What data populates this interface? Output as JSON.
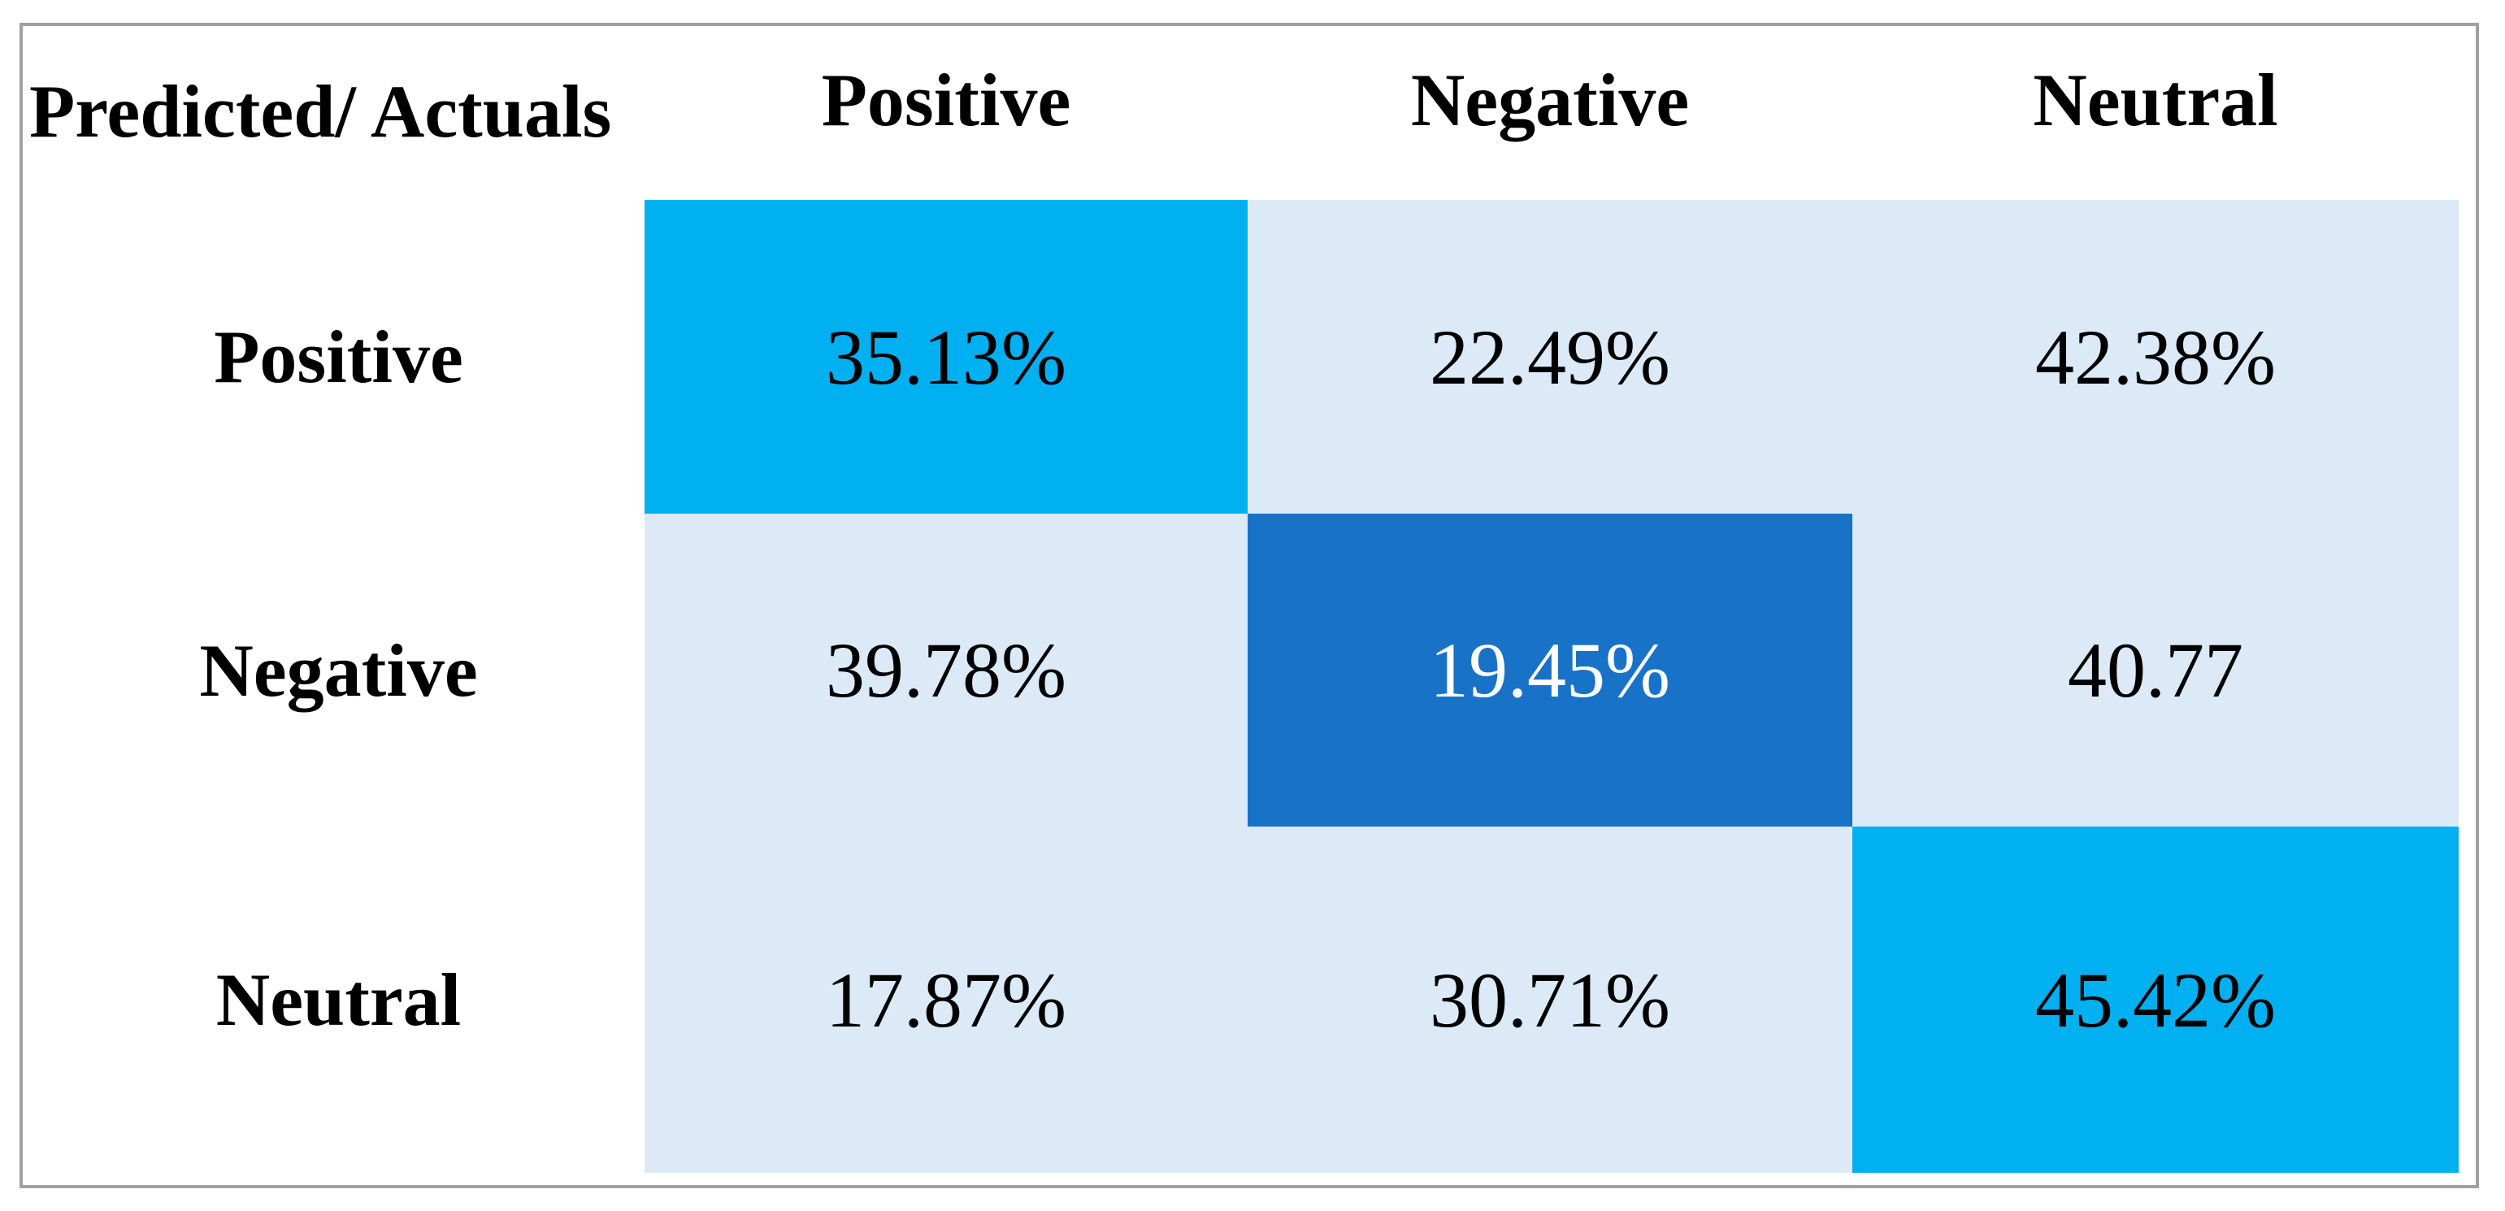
{
  "table": {
    "header": [
      "Predicted/ Actuals",
      "Positive",
      "Negative",
      "Neutral"
    ],
    "rows": [
      [
        "Positive",
        "35.13%",
        "22.49%",
        "42.38%"
      ],
      [
        "Negative",
        "39.78%",
        "19.45%",
        "40.77"
      ],
      [
        "Neutral",
        "17.87%",
        "30.71%",
        "45.42%"
      ]
    ]
  }
}
